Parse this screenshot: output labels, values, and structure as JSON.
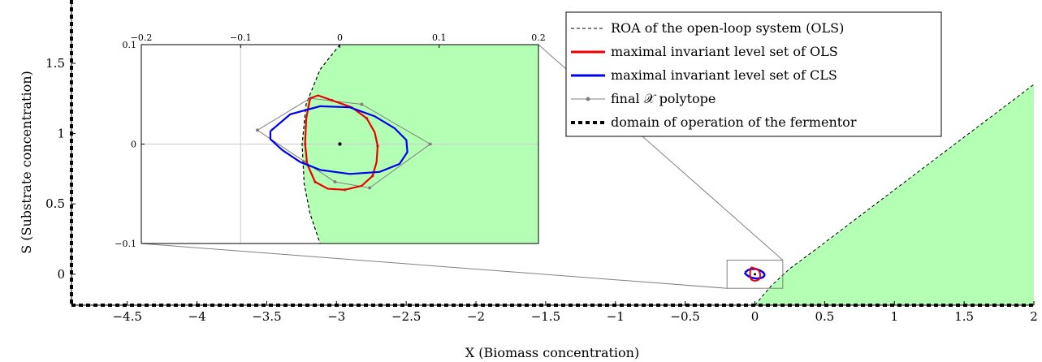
{
  "chart_data": {
    "type": "line",
    "xlabel": "X (Biomass concentration)",
    "ylabel": "S (Substrate concentration)",
    "xlim": [
      -4.9,
      2.0
    ],
    "ylim": [
      -0.22,
      1.95
    ],
    "x_ticks": [
      "−4.5",
      "−4",
      "−3.5",
      "−3",
      "−2.5",
      "−2",
      "−1.5",
      "−1",
      "−0.5",
      "0",
      "0.5",
      "1",
      "1.5",
      "2"
    ],
    "x_tick_values": [
      -4.5,
      -4,
      -3.5,
      -3,
      -2.5,
      -2,
      -1.5,
      -1,
      -0.5,
      0,
      0.5,
      1,
      1.5,
      2
    ],
    "y_ticks": [
      "0",
      "0.5",
      "1",
      "1.5"
    ],
    "y_tick_values": [
      0,
      0.5,
      1,
      1.5
    ],
    "grid": false,
    "legend_position": "top-right",
    "legend": [
      {
        "label": "ROA of the open-loop system (OLS)",
        "style": "dashed",
        "color": "#000000"
      },
      {
        "label": "maximal invariant level set of OLS",
        "style": "solid",
        "color": "#ee0000"
      },
      {
        "label": "maximal invariant level set of CLS",
        "style": "solid",
        "color": "#0000ee"
      },
      {
        "label": "final 𝒳 polytope",
        "style": "line-marker",
        "color": "#808080"
      },
      {
        "label": "domain of operation of the fermentor",
        "style": "thick-dashed",
        "color": "#000000"
      }
    ],
    "roa_fill_color": "#b3ffb3",
    "roa_boundary": {
      "x": [
        0,
        0.05,
        0.12,
        0.25,
        0.4,
        0.6,
        0.8,
        1.0,
        1.2,
        1.4,
        1.6,
        1.8,
        2.0
      ],
      "y": [
        -0.22,
        -0.16,
        -0.08,
        0.04,
        0.15,
        0.3,
        0.45,
        0.6,
        0.75,
        0.9,
        1.05,
        1.2,
        1.35
      ]
    },
    "equilibrium": {
      "x": 0,
      "y": 0
    },
    "domain_of_operation": {
      "x_min": -4.9,
      "y_min": -0.22
    },
    "zoom_box": {
      "x": [
        -0.2,
        0.2
      ],
      "y": [
        -0.1,
        0.1
      ]
    },
    "inset": {
      "xlim": [
        -0.2,
        0.2
      ],
      "ylim": [
        -0.1,
        0.1
      ],
      "x_ticks": [
        "−0.2",
        "−0.1",
        "0",
        "0.1",
        "0.2"
      ],
      "x_tick_values": [
        -0.2,
        -0.1,
        0,
        0.1,
        0.2
      ],
      "y_ticks": [
        "0.1",
        "0",
        "−0.1"
      ],
      "y_tick_values": [
        0.1,
        0,
        -0.1
      ],
      "roa_boundary": {
        "x": [
          0,
          -0.02,
          -0.034,
          -0.038,
          -0.036,
          -0.03,
          -0.02
        ],
        "y": [
          0.1,
          0.075,
          0.04,
          0.0,
          -0.04,
          -0.07,
          -0.1
        ]
      },
      "ols_level_set": {
        "x": [
          -0.03,
          -0.022,
          -0.008,
          0.012,
          0.027,
          0.035,
          0.038,
          0.037,
          0.033,
          0.022,
          0.005,
          -0.012,
          -0.025,
          -0.033,
          -0.035,
          -0.034,
          -0.03
        ],
        "y": [
          0.046,
          0.049,
          0.044,
          0.037,
          0.026,
          0.012,
          -0.002,
          -0.018,
          -0.032,
          -0.042,
          -0.046,
          -0.045,
          -0.038,
          -0.02,
          0.0,
          0.025,
          0.046
        ]
      },
      "cls_level_set": {
        "x": [
          -0.07,
          -0.05,
          -0.02,
          0.01,
          0.035,
          0.055,
          0.067,
          0.068,
          0.06,
          0.04,
          0.01,
          -0.02,
          -0.04,
          -0.058,
          -0.07,
          -0.07
        ],
        "y": [
          0.013,
          0.03,
          0.038,
          0.037,
          0.028,
          0.016,
          0.004,
          -0.008,
          -0.02,
          -0.028,
          -0.03,
          -0.026,
          -0.018,
          -0.006,
          0.005,
          0.013
        ]
      },
      "polytope": {
        "x": [
          -0.083,
          -0.03,
          0.022,
          0.091,
          0.03,
          -0.005,
          -0.035,
          -0.083
        ],
        "y": [
          0.014,
          0.046,
          0.04,
          0.0,
          -0.044,
          -0.038,
          -0.018,
          0.014
        ]
      }
    }
  }
}
